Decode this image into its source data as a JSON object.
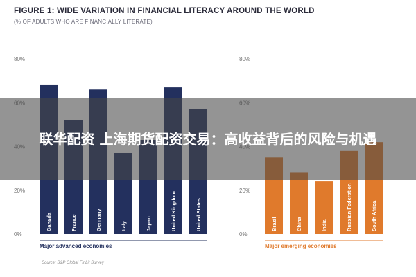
{
  "chart_data": [
    {
      "type": "bar",
      "title": "FIGURE 1: WIDE VARIATION IN FINANCIAL LITERACY AROUND THE WORLD",
      "subtitle": "(% OF ADULTS WHO ARE FINANCIALLY LITERATE)",
      "group_label": "Major advanced economies",
      "categories": [
        "Canada",
        "France",
        "Germany",
        "Italy",
        "Japan",
        "United Kingdom",
        "United States"
      ],
      "values": [
        68,
        52,
        66,
        37,
        43,
        67,
        57
      ],
      "yticks": [
        "0%",
        "20%",
        "40%",
        "60%",
        "80%"
      ],
      "ylim": [
        0,
        80
      ],
      "color": "#23305e"
    },
    {
      "type": "bar",
      "group_label": "Major emerging economies",
      "categories": [
        "Brazil",
        "China",
        "India",
        "Russian Federation",
        "South Africa"
      ],
      "values": [
        35,
        28,
        24,
        38,
        42
      ],
      "yticks": [
        "0%",
        "20%",
        "40%",
        "60%",
        "80%"
      ],
      "ylim": [
        0,
        80
      ],
      "color": "#e07a2c"
    }
  ],
  "source": "Source: S&P Global FinLit Survey",
  "overlay": {
    "text": "联华配资 上海期货配资交易：高收益背后的风险与机遇"
  }
}
